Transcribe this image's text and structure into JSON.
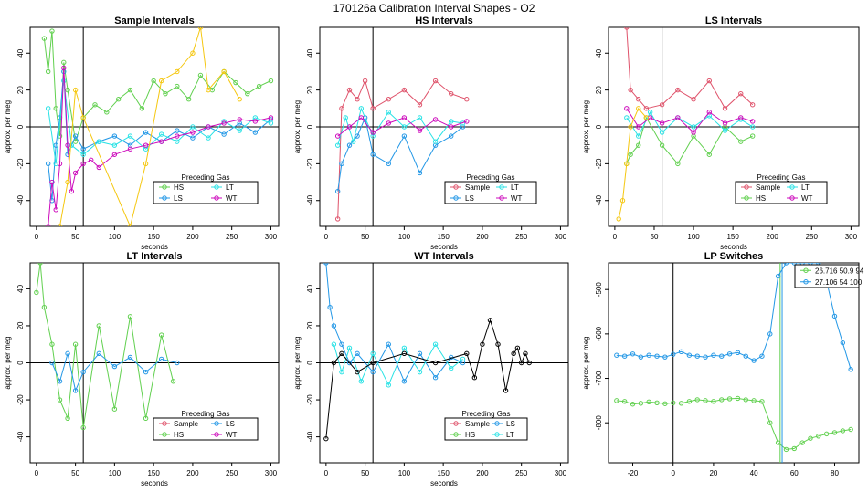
{
  "figure": {
    "title": "170126a   Calibration Interval Shapes - O2"
  },
  "chart_data": [
    {
      "type": "scatter",
      "title": "Sample Intervals",
      "xlabel": "seconds",
      "ylabel": "approx. per meg",
      "xlim": [
        -8,
        310
      ],
      "ylim": [
        -54,
        54
      ],
      "xticks": [
        0,
        50,
        100,
        150,
        200,
        250,
        300
      ],
      "yticks": [
        -40,
        -20,
        0,
        20,
        40
      ],
      "vline": 60,
      "hline": 0,
      "legend": {
        "title": "Preceding Gas",
        "entries": [
          {
            "label": "HS",
            "color": "#61D04F"
          },
          {
            "label": "LT",
            "color": "#28E2E5"
          },
          {
            "label": "LS",
            "color": "#2297E6"
          },
          {
            "label": "WT",
            "color": "#CD0BBC"
          }
        ]
      },
      "series": [
        {
          "name": "HS",
          "color": "#61D04F",
          "x": [
            10,
            15,
            20,
            25,
            30,
            35,
            40,
            50,
            60,
            75,
            90,
            105,
            120,
            135,
            150,
            165,
            180,
            195,
            210,
            225,
            240,
            255,
            270,
            285,
            300
          ],
          "y": [
            48,
            30,
            52,
            10,
            -5,
            35,
            20,
            -8,
            5,
            12,
            8,
            15,
            20,
            10,
            25,
            18,
            22,
            15,
            28,
            20,
            30,
            24,
            18,
            22,
            25
          ]
        },
        {
          "name": "LS",
          "color": "#2297E6",
          "x": [
            15,
            20,
            25,
            30,
            35,
            40,
            50,
            60,
            80,
            100,
            120,
            140,
            160,
            180,
            200,
            220,
            240,
            260,
            280,
            300
          ],
          "y": [
            -20,
            -40,
            -10,
            5,
            30,
            -15,
            -5,
            -12,
            -8,
            -5,
            -10,
            -3,
            -8,
            -2,
            -6,
            0,
            -4,
            2,
            -3,
            4
          ]
        },
        {
          "name": "LT",
          "color": "#28E2E5",
          "x": [
            15,
            25,
            35,
            45,
            60,
            80,
            100,
            120,
            140,
            160,
            180,
            200,
            220,
            240,
            260,
            280,
            300
          ],
          "y": [
            10,
            -20,
            25,
            -10,
            -15,
            -8,
            -10,
            -5,
            -12,
            -4,
            -8,
            0,
            -6,
            3,
            -2,
            5,
            2
          ]
        },
        {
          "name": "WT",
          "color": "#CD0BBC",
          "x": [
            15,
            20,
            25,
            30,
            35,
            40,
            45,
            50,
            60,
            70,
            80,
            100,
            120,
            140,
            160,
            180,
            200,
            220,
            240,
            260,
            280,
            300
          ],
          "y": [
            -54,
            -30,
            -45,
            -20,
            32,
            -10,
            -35,
            -25,
            -20,
            -18,
            -22,
            -15,
            -12,
            -10,
            -8,
            -5,
            -3,
            0,
            2,
            4,
            3,
            5
          ]
        },
        {
          "name": "Sample",
          "color": "#F5C710",
          "x": [
            30,
            40,
            50,
            60,
            120,
            140,
            160,
            180,
            200,
            210,
            220,
            240,
            260
          ],
          "y": [
            -54,
            -30,
            20,
            5,
            -54,
            -20,
            25,
            30,
            40,
            54,
            20,
            30,
            15
          ]
        }
      ]
    },
    {
      "type": "scatter",
      "title": "HS Intervals",
      "xlabel": "seconds",
      "ylabel": "approx. per meg",
      "xlim": [
        -8,
        310
      ],
      "ylim": [
        -54,
        54
      ],
      "xticks": [
        0,
        50,
        100,
        150,
        200,
        250,
        300
      ],
      "yticks": [
        -40,
        -20,
        0,
        20,
        40
      ],
      "vline": 60,
      "hline": 0,
      "legend": {
        "title": "Preceding Gas",
        "entries": [
          {
            "label": "Sample",
            "color": "#DF536B"
          },
          {
            "label": "LT",
            "color": "#28E2E5"
          },
          {
            "label": "LS",
            "color": "#2297E6"
          },
          {
            "label": "WT",
            "color": "#CD0BBC"
          }
        ]
      },
      "series": [
        {
          "name": "Sample",
          "color": "#DF536B",
          "x": [
            15,
            20,
            30,
            40,
            50,
            60,
            80,
            100,
            120,
            140,
            160,
            180
          ],
          "y": [
            -50,
            10,
            20,
            15,
            25,
            10,
            15,
            20,
            12,
            25,
            18,
            15
          ]
        },
        {
          "name": "LS",
          "color": "#2297E6",
          "x": [
            15,
            20,
            30,
            40,
            50,
            60,
            80,
            100,
            120,
            140,
            160,
            175
          ],
          "y": [
            -35,
            -20,
            -10,
            -5,
            5,
            -15,
            -20,
            -5,
            -25,
            -10,
            -5,
            0
          ]
        },
        {
          "name": "LT",
          "color": "#28E2E5",
          "x": [
            15,
            25,
            35,
            45,
            60,
            80,
            100,
            120,
            140,
            160,
            175
          ],
          "y": [
            -10,
            5,
            -8,
            10,
            -5,
            8,
            0,
            5,
            -8,
            3,
            2
          ]
        },
        {
          "name": "WT",
          "color": "#CD0BBC",
          "x": [
            15,
            30,
            45,
            60,
            80,
            100,
            120,
            140,
            160,
            180
          ],
          "y": [
            -5,
            0,
            5,
            -3,
            2,
            5,
            -2,
            4,
            0,
            3
          ]
        }
      ]
    },
    {
      "type": "scatter",
      "title": "LS Intervals",
      "xlabel": "seconds",
      "ylabel": "approx. per meg",
      "xlim": [
        -8,
        310
      ],
      "ylim": [
        -54,
        54
      ],
      "xticks": [
        0,
        50,
        100,
        150,
        200,
        250,
        300
      ],
      "yticks": [
        -40,
        -20,
        0,
        20,
        40
      ],
      "vline": 60,
      "hline": 0,
      "legend": {
        "title": "Preceding Gas",
        "entries": [
          {
            "label": "Sample",
            "color": "#DF536B"
          },
          {
            "label": "LT",
            "color": "#28E2E5"
          },
          {
            "label": "HS",
            "color": "#61D04F"
          },
          {
            "label": "WT",
            "color": "#CD0BBC"
          }
        ]
      },
      "series": [
        {
          "name": "Sample",
          "color": "#DF536B",
          "x": [
            15,
            20,
            30,
            40,
            60,
            80,
            100,
            120,
            140,
            160,
            175
          ],
          "y": [
            54,
            20,
            15,
            10,
            12,
            20,
            15,
            25,
            10,
            18,
            12
          ]
        },
        {
          "name": "HS",
          "color": "#61D04F",
          "x": [
            15,
            20,
            30,
            40,
            60,
            80,
            100,
            120,
            140,
            160,
            175
          ],
          "y": [
            -20,
            -15,
            -10,
            5,
            -10,
            -20,
            -5,
            -15,
            0,
            -8,
            -5
          ]
        },
        {
          "name": "LT",
          "color": "#28E2E5",
          "x": [
            15,
            30,
            45,
            60,
            80,
            100,
            120,
            140,
            160,
            175
          ],
          "y": [
            5,
            -5,
            8,
            -3,
            5,
            0,
            6,
            -2,
            4,
            0
          ]
        },
        {
          "name": "WT",
          "color": "#CD0BBC",
          "x": [
            15,
            30,
            45,
            60,
            80,
            100,
            120,
            140,
            160,
            175
          ],
          "y": [
            10,
            0,
            5,
            2,
            5,
            -3,
            8,
            2,
            5,
            3
          ]
        },
        {
          "name": "LP",
          "color": "#F5C710",
          "x": [
            5,
            10,
            15,
            20,
            30,
            40
          ],
          "y": [
            -50,
            -40,
            -20,
            0,
            10,
            5
          ]
        }
      ]
    },
    {
      "type": "scatter",
      "title": "LT Intervals",
      "xlabel": "seconds",
      "ylabel": "approx. per meg",
      "xlim": [
        -8,
        310
      ],
      "ylim": [
        -54,
        54
      ],
      "xticks": [
        0,
        50,
        100,
        150,
        200,
        250,
        300
      ],
      "yticks": [
        -40,
        -20,
        0,
        20,
        40
      ],
      "vline": 60,
      "hline": 0,
      "legend": {
        "title": "Preceding Gas",
        "entries": [
          {
            "label": "Sample",
            "color": "#DF536B"
          },
          {
            "label": "LS",
            "color": "#2297E6"
          },
          {
            "label": "HS",
            "color": "#61D04F"
          },
          {
            "label": "WT",
            "color": "#CD0BBC"
          }
        ]
      },
      "series": [
        {
          "name": "HS",
          "color": "#61D04F",
          "x": [
            0,
            5,
            10,
            20,
            30,
            40,
            50,
            60,
            80,
            100,
            120,
            140,
            160,
            175
          ],
          "y": [
            38,
            54,
            30,
            10,
            -20,
            -30,
            10,
            -35,
            20,
            -25,
            25,
            -30,
            15,
            -10
          ]
        },
        {
          "name": "LS",
          "color": "#2297E6",
          "x": [
            20,
            30,
            40,
            50,
            60,
            80,
            100,
            120,
            140,
            160,
            180
          ],
          "y": [
            0,
            -10,
            5,
            -15,
            -5,
            5,
            -2,
            3,
            -5,
            2,
            0
          ]
        }
      ]
    },
    {
      "type": "scatter",
      "title": "WT Intervals",
      "xlabel": "seconds",
      "ylabel": "approx. per meg",
      "xlim": [
        -8,
        310
      ],
      "ylim": [
        -54,
        54
      ],
      "xticks": [
        0,
        50,
        100,
        150,
        200,
        250,
        300
      ],
      "yticks": [
        -40,
        -20,
        0,
        20,
        40
      ],
      "vline": 60,
      "hline": 0,
      "legend": {
        "title": "Preceding Gas",
        "entries": [
          {
            "label": "Sample",
            "color": "#DF536B"
          },
          {
            "label": "LS",
            "color": "#2297E6"
          },
          {
            "label": "HS",
            "color": "#61D04F"
          },
          {
            "label": "LT",
            "color": "#28E2E5"
          }
        ]
      },
      "series": [
        {
          "name": "LS",
          "color": "#2297E6",
          "x": [
            0,
            5,
            10,
            20,
            30,
            40,
            60,
            80,
            100,
            120,
            140,
            160,
            175
          ],
          "y": [
            54,
            30,
            20,
            10,
            0,
            5,
            -5,
            10,
            -10,
            5,
            -8,
            3,
            0
          ]
        },
        {
          "name": "LT",
          "color": "#28E2E5",
          "x": [
            10,
            20,
            30,
            45,
            60,
            80,
            100,
            120,
            140,
            160,
            175
          ],
          "y": [
            10,
            -5,
            8,
            -10,
            5,
            -12,
            8,
            -5,
            10,
            -3,
            2
          ]
        },
        {
          "name": "other",
          "color": "#000000",
          "x": [
            0,
            10,
            20,
            40,
            60,
            100,
            140,
            180,
            190,
            200,
            210,
            220,
            230,
            240,
            245,
            250,
            255,
            260
          ],
          "y": [
            -41,
            0,
            5,
            -5,
            0,
            5,
            0,
            5,
            -8,
            10,
            23,
            10,
            -15,
            5,
            8,
            0,
            5,
            0
          ]
        }
      ]
    },
    {
      "type": "scatter",
      "title": "LP Switches",
      "xlabel": "",
      "ylabel": "approx. per meg",
      "xlim": [
        -32,
        92
      ],
      "ylim": [
        -890,
        -440
      ],
      "xticks": [
        -20,
        0,
        20,
        40,
        60,
        80
      ],
      "yticks": [
        -800,
        -700,
        -600,
        -500
      ],
      "vline": 0,
      "legend": {
        "entries": [
          {
            "label": "26.716 50.9 94",
            "color": "#61D04F"
          },
          {
            "label": "27.106 54 100",
            "color": "#2297E6"
          }
        ]
      },
      "series": [
        {
          "name": "26.716 50.9 94",
          "color": "#61D04F",
          "vline": 53,
          "x": [
            -28,
            -24,
            -20,
            -16,
            -12,
            -8,
            -4,
            0,
            4,
            8,
            12,
            16,
            20,
            24,
            28,
            32,
            36,
            40,
            44,
            48,
            52,
            56,
            60,
            64,
            68,
            72,
            76,
            80,
            84,
            88
          ],
          "y": [
            -750,
            -752,
            -758,
            -756,
            -753,
            -755,
            -757,
            -755,
            -756,
            -752,
            -748,
            -750,
            -752,
            -748,
            -746,
            -745,
            -748,
            -750,
            -752,
            -800,
            -845,
            -860,
            -858,
            -845,
            -835,
            -830,
            -825,
            -822,
            -818,
            -815
          ]
        },
        {
          "name": "27.106 54 100",
          "color": "#2297E6",
          "vline": 54,
          "x": [
            -28,
            -24,
            -20,
            -16,
            -12,
            -8,
            -4,
            0,
            4,
            8,
            12,
            16,
            20,
            24,
            28,
            32,
            36,
            40,
            44,
            48,
            52,
            56,
            60,
            64,
            68,
            72,
            76,
            80,
            84,
            88
          ],
          "y": [
            -648,
            -650,
            -645,
            -652,
            -648,
            -650,
            -652,
            -646,
            -640,
            -648,
            -650,
            -652,
            -648,
            -650,
            -645,
            -642,
            -650,
            -660,
            -650,
            -600,
            -470,
            -440,
            -440,
            -440,
            -440,
            -440,
            -480,
            -560,
            -620,
            -680
          ]
        }
      ]
    }
  ]
}
